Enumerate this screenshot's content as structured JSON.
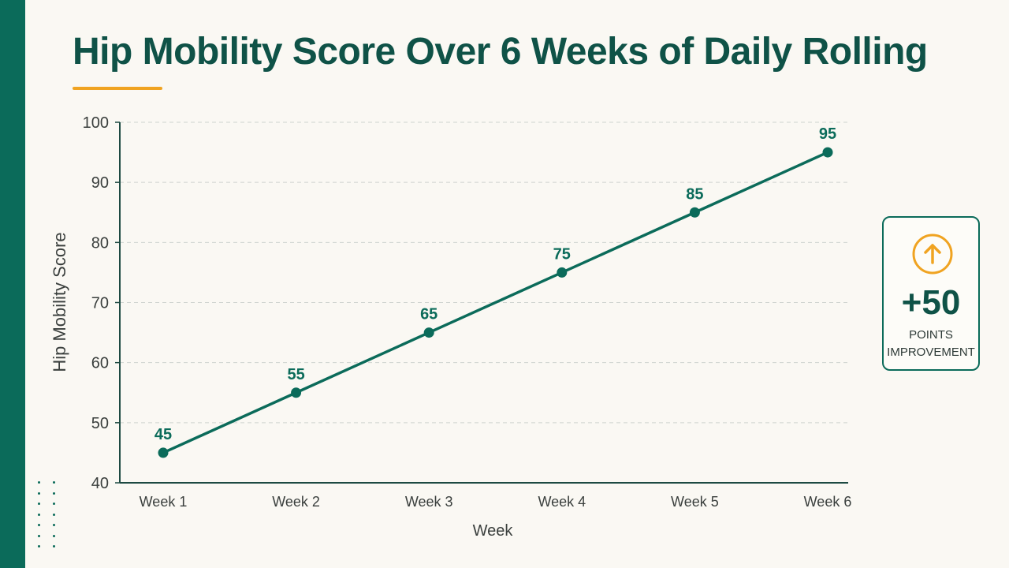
{
  "title": "Hip Mobility Score Over 6 Weeks of Daily Rolling",
  "colors": {
    "accent": "#0b6b5a",
    "title": "#0f5247",
    "highlight": "#f0a321",
    "background": "#faf8f3"
  },
  "callout": {
    "icon": "up-arrow-circle-icon",
    "value": "+50",
    "label_line1": "POINTS",
    "label_line2": "IMPROVEMENT"
  },
  "chart_data": {
    "type": "line",
    "title": "Hip Mobility Score Over 6 Weeks of Daily Rolling",
    "xlabel": "Week",
    "ylabel": "Hip Mobility Score",
    "categories": [
      "Week 1",
      "Week 2",
      "Week 3",
      "Week 4",
      "Week 5",
      "Week 6"
    ],
    "values": [
      45,
      55,
      65,
      75,
      85,
      95
    ],
    "data_labels": [
      "45",
      "55",
      "65",
      "75",
      "85",
      "95"
    ],
    "ylim": [
      40,
      100
    ],
    "yticks": [
      40,
      50,
      60,
      70,
      80,
      90,
      100
    ],
    "grid": "horizontal-dashed",
    "legend": "none"
  }
}
